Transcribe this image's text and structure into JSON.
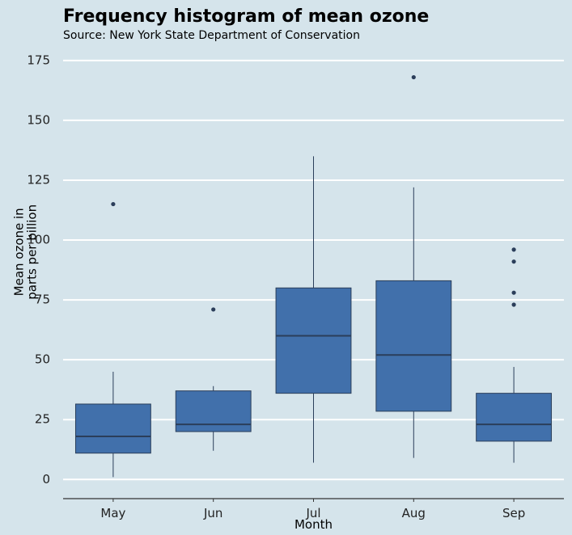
{
  "chart_data": {
    "type": "boxplot",
    "title": "Frequency histogram of mean ozone",
    "subtitle": "Source: New York State Department of Conservation",
    "xlabel": "Month",
    "ylabel_lines": [
      "Mean ozone in",
      "parts per billion"
    ],
    "ylim": [
      -8,
      180
    ],
    "y_ticks": [
      0,
      25,
      50,
      75,
      100,
      125,
      150,
      175
    ],
    "categories": [
      "May",
      "Jun",
      "Jul",
      "Aug",
      "Sep"
    ],
    "boxes": [
      {
        "category": "May",
        "whisker_low": 1,
        "q1": 11,
        "median": 18,
        "q3": 31.5,
        "whisker_high": 45,
        "outliers": [
          115
        ]
      },
      {
        "category": "Jun",
        "whisker_low": 12,
        "q1": 20,
        "median": 23,
        "q3": 37,
        "whisker_high": 39,
        "outliers": [
          71
        ]
      },
      {
        "category": "Jul",
        "whisker_low": 7,
        "q1": 36,
        "median": 60,
        "q3": 80,
        "whisker_high": 135,
        "outliers": []
      },
      {
        "category": "Aug",
        "whisker_low": 9,
        "q1": 28.5,
        "median": 52,
        "q3": 83,
        "whisker_high": 122,
        "outliers": [
          168
        ]
      },
      {
        "category": "Sep",
        "whisker_low": 7,
        "q1": 16,
        "median": 23,
        "q3": 36,
        "whisker_high": 47,
        "outliers": [
          73,
          78,
          91,
          96
        ]
      }
    ],
    "grid": true,
    "legend": "none",
    "colors": {
      "box_fill": "#4170ab",
      "box_stroke": "#2b3e5a",
      "grid": "#ffffff",
      "background": "#d5e4eb",
      "outlier": "#2b3e5a"
    }
  }
}
